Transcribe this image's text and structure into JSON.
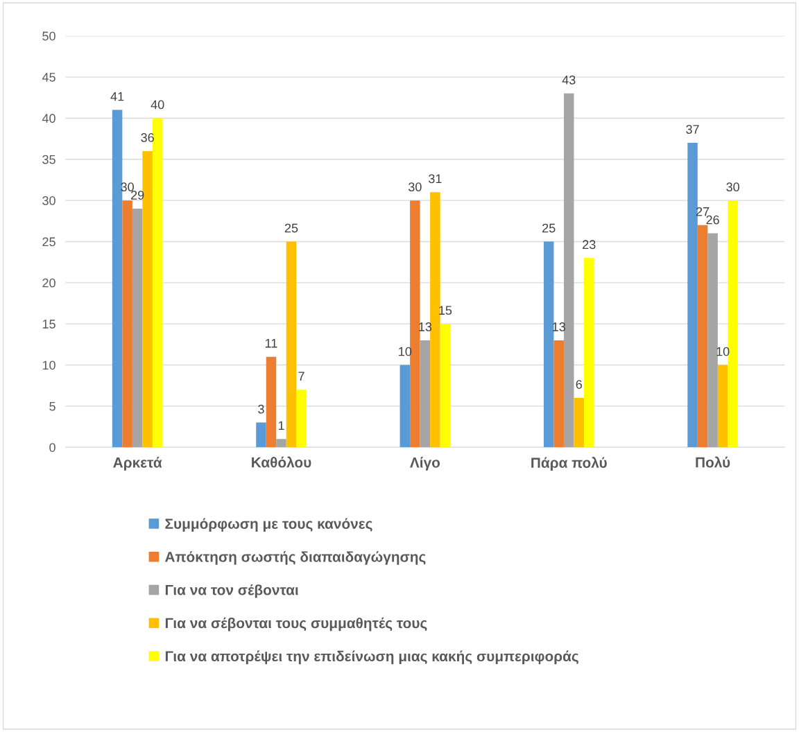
{
  "chart_data": {
    "type": "bar",
    "categories": [
      "Αρκετά",
      "Καθόλου",
      "Λίγο",
      "Πάρα πολύ",
      "Πολύ"
    ],
    "series": [
      {
        "name": "Συμμόρφωση με τους κανόνες",
        "color": "#5b9bd5",
        "values": [
          41,
          3,
          10,
          25,
          37
        ]
      },
      {
        "name": "Απόκτηση σωστής διαπαιδαγώγησης",
        "color": "#ed7d31",
        "values": [
          30,
          11,
          30,
          13,
          27
        ]
      },
      {
        "name": "Για να τον σέβονται",
        "color": "#a5a5a5",
        "values": [
          29,
          1,
          13,
          43,
          26
        ]
      },
      {
        "name": "Για να σέβονται τους συμμαθητές τους",
        "color": "#ffc000",
        "values": [
          36,
          25,
          31,
          6,
          10
        ]
      },
      {
        "name": "Για να αποτρέψει την επιδείνωση μιας κακής συμπεριφοράς",
        "color": "#ffff00",
        "values": [
          40,
          7,
          15,
          23,
          30
        ]
      }
    ],
    "ylim": [
      0,
      50
    ],
    "yticks": [
      0,
      5,
      10,
      15,
      20,
      25,
      30,
      35,
      40,
      45,
      50
    ],
    "grid": "y",
    "legend": "bottom",
    "data_labels": true
  }
}
